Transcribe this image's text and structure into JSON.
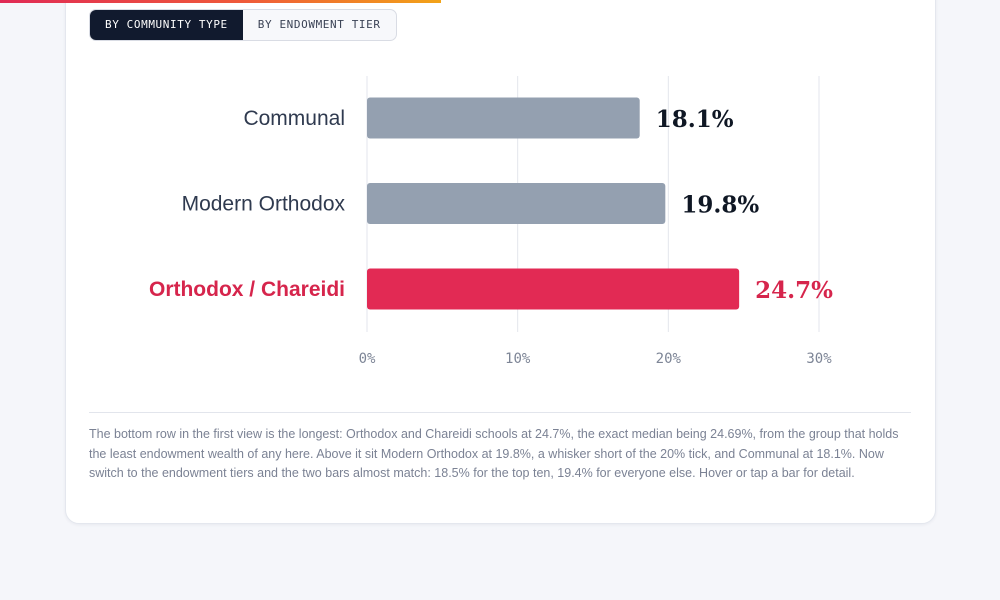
{
  "toggle": {
    "options": [
      "BY COMMUNITY TYPE",
      "BY ENDOWMENT TIER"
    ],
    "active_index": 0
  },
  "colors": {
    "neutral_bar": "#94a0b0",
    "highlight_bar": "#e22a54",
    "neutral_label": "#2f3a4f",
    "highlight_label": "#d6254c",
    "value_label": "#0f1724",
    "grid": "#e3e6ec",
    "tick_label": "#7d8596"
  },
  "chart_data": {
    "type": "bar",
    "orientation": "horizontal",
    "categories": [
      "Communal",
      "Modern Orthodox",
      "Orthodox / Chareidi"
    ],
    "values": [
      18.1,
      19.8,
      24.7
    ],
    "value_labels": [
      "18.1%",
      "19.8%",
      "24.7%"
    ],
    "highlight": "Orthodox / Chareidi",
    "xlim": [
      0,
      30
    ],
    "xticks": [
      0,
      10,
      20,
      30
    ],
    "xtick_labels": [
      "0%",
      "10%",
      "20%",
      "30%"
    ],
    "grid": true,
    "title": "",
    "xlabel": "",
    "ylabel": ""
  },
  "note": "The bottom row in the first view is the longest: Orthodox and Chareidi schools at 24.7%, the exact median being 24.69%, from the group that holds the least endowment wealth of any here. Above it sit Modern Orthodox at 19.8%, a whisker short of the 20% tick, and Communal at 18.1%. Now switch to the endowment tiers and the two bars almost match: 18.5% for the top ten, 19.4% for everyone else. Hover or tap a bar for detail."
}
